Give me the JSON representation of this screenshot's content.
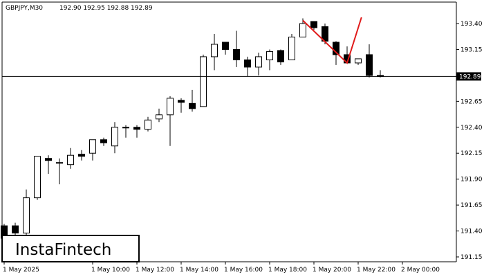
{
  "header": {
    "symbol_timeframe": "GBPJPY,M30",
    "ohlc": "192.90 192.95 192.88 192.89"
  },
  "logo": {
    "text": "InstaFintech"
  },
  "current_price": {
    "value": 192.89,
    "label": "192.89"
  },
  "colors": {
    "background": "#ffffff",
    "candle_outline": "#000000",
    "bull_fill": "#ffffff",
    "bear_fill": "#000000",
    "pattern_line": "#e01b1b",
    "price_tag": "#000000"
  },
  "chart_data": {
    "type": "candlestick",
    "title": "GBPJPY,M30",
    "grid": false,
    "legend": "none",
    "xlabel": "",
    "ylabel": "",
    "ylim": [
      191.12,
      193.55
    ],
    "y_ticks": [
      "193.40",
      "193.15",
      "192.89",
      "192.65",
      "192.40",
      "192.15",
      "191.90",
      "191.65",
      "191.40",
      "191.15"
    ],
    "x_ticks": [
      {
        "index": 0,
        "label": "1 May 2025"
      },
      {
        "index": 8,
        "label": "1 May 10:00"
      },
      {
        "index": 12,
        "label": "1 May 12:00"
      },
      {
        "index": 16,
        "label": "1 May 14:00"
      },
      {
        "index": 20,
        "label": "1 May 16:00"
      },
      {
        "index": 24,
        "label": "1 May 18:00"
      },
      {
        "index": 28,
        "label": "1 May 20:00"
      },
      {
        "index": 32,
        "label": "1 May 22:00"
      },
      {
        "index": 36,
        "label": "2 May 00:00"
      }
    ],
    "candles": [
      {
        "o": 191.45,
        "h": 191.47,
        "l": 191.35,
        "c": 191.33
      },
      {
        "o": 191.45,
        "h": 191.48,
        "l": 191.36,
        "c": 191.38
      },
      {
        "o": 191.38,
        "h": 191.8,
        "l": 191.36,
        "c": 191.72
      },
      {
        "o": 191.72,
        "h": 192.12,
        "l": 191.7,
        "c": 192.12
      },
      {
        "o": 192.1,
        "h": 192.13,
        "l": 191.95,
        "c": 192.08
      },
      {
        "o": 192.06,
        "h": 192.1,
        "l": 191.85,
        "c": 192.06
      },
      {
        "o": 192.04,
        "h": 192.2,
        "l": 192.0,
        "c": 192.13
      },
      {
        "o": 192.14,
        "h": 192.18,
        "l": 192.08,
        "c": 192.12
      },
      {
        "o": 192.15,
        "h": 192.28,
        "l": 192.08,
        "c": 192.28
      },
      {
        "o": 192.28,
        "h": 192.3,
        "l": 192.22,
        "c": 192.25
      },
      {
        "o": 192.22,
        "h": 192.45,
        "l": 192.15,
        "c": 192.4
      },
      {
        "o": 192.4,
        "h": 192.42,
        "l": 192.3,
        "c": 192.4
      },
      {
        "o": 192.4,
        "h": 192.42,
        "l": 192.3,
        "c": 192.38
      },
      {
        "o": 192.38,
        "h": 192.5,
        "l": 192.36,
        "c": 192.47
      },
      {
        "o": 192.48,
        "h": 192.58,
        "l": 192.45,
        "c": 192.52
      },
      {
        "o": 192.52,
        "h": 192.7,
        "l": 192.22,
        "c": 192.68
      },
      {
        "o": 192.66,
        "h": 192.68,
        "l": 192.54,
        "c": 192.64
      },
      {
        "o": 192.63,
        "h": 192.76,
        "l": 192.55,
        "c": 192.58
      },
      {
        "o": 192.6,
        "h": 193.1,
        "l": 192.6,
        "c": 193.08
      },
      {
        "o": 193.08,
        "h": 193.3,
        "l": 192.95,
        "c": 193.2
      },
      {
        "o": 193.22,
        "h": 193.22,
        "l": 193.1,
        "c": 193.15
      },
      {
        "o": 193.15,
        "h": 193.33,
        "l": 192.98,
        "c": 193.05
      },
      {
        "o": 193.05,
        "h": 193.08,
        "l": 192.89,
        "c": 192.98
      },
      {
        "o": 192.98,
        "h": 193.12,
        "l": 192.9,
        "c": 193.08
      },
      {
        "o": 193.05,
        "h": 193.15,
        "l": 192.95,
        "c": 193.13
      },
      {
        "o": 193.14,
        "h": 193.15,
        "l": 193.0,
        "c": 193.03
      },
      {
        "o": 193.05,
        "h": 193.3,
        "l": 193.05,
        "c": 193.27
      },
      {
        "o": 193.27,
        "h": 193.45,
        "l": 193.27,
        "c": 193.4
      },
      {
        "o": 193.42,
        "h": 193.42,
        "l": 193.34,
        "c": 193.36
      },
      {
        "o": 193.37,
        "h": 193.4,
        "l": 193.2,
        "c": 193.23
      },
      {
        "o": 193.22,
        "h": 193.23,
        "l": 193.0,
        "c": 193.1
      },
      {
        "o": 193.1,
        "h": 193.18,
        "l": 193.02,
        "c": 193.02
      },
      {
        "o": 193.02,
        "h": 193.06,
        "l": 193.0,
        "c": 193.06
      },
      {
        "o": 193.1,
        "h": 193.2,
        "l": 192.88,
        "c": 192.9
      },
      {
        "o": 192.9,
        "h": 192.95,
        "l": 192.88,
        "c": 192.89
      }
    ],
    "pattern": {
      "type": "double top",
      "points": [
        {
          "x": 27.0,
          "y": 193.43
        },
        {
          "x": 31.0,
          "y": 193.02
        },
        {
          "x": 32.3,
          "y": 193.46
        }
      ]
    }
  }
}
